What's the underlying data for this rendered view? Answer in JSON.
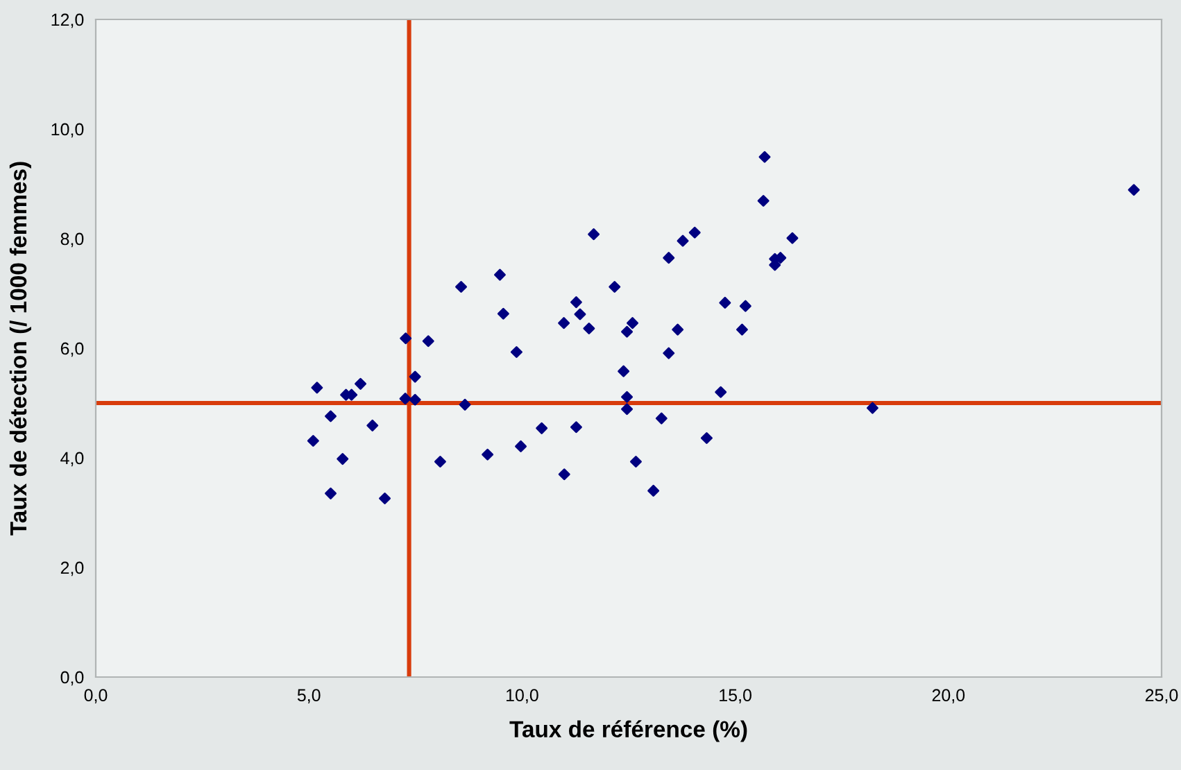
{
  "chart_data": {
    "type": "scatter",
    "xlabel": "Taux de référence (%)",
    "ylabel": "Taux de détection (/ 1000 femmes)",
    "xlim": [
      0,
      25
    ],
    "ylim": [
      0,
      12
    ],
    "xticks": [
      {
        "value": 0,
        "label": "0,0"
      },
      {
        "value": 5,
        "label": "5,0"
      },
      {
        "value": 10,
        "label": "10,0"
      },
      {
        "value": 15,
        "label": "15,0"
      },
      {
        "value": 20,
        "label": "20,0"
      },
      {
        "value": 25,
        "label": "25,0"
      }
    ],
    "yticks": [
      {
        "value": 0,
        "label": "0,0"
      },
      {
        "value": 2,
        "label": "2,0"
      },
      {
        "value": 4,
        "label": "4,0"
      },
      {
        "value": 6,
        "label": "6,0"
      },
      {
        "value": 8,
        "label": "8,0"
      },
      {
        "value": 10,
        "label": "10,0"
      },
      {
        "value": 12,
        "label": "12,0"
      }
    ],
    "grid": false,
    "legend": false,
    "marker": "diamond",
    "series": [
      {
        "color": "#000080",
        "x": [
          5.19,
          5.51,
          5.1,
          5.79,
          5.51,
          5.87,
          6.0,
          6.21,
          6.49,
          6.78,
          7.27,
          7.26,
          7.49,
          7.49,
          7.8,
          8.08,
          8.57,
          8.66,
          9.48,
          9.56,
          9.87,
          9.19,
          9.97,
          10.46,
          10.99,
          11.27,
          10.98,
          11.27,
          11.36,
          11.57,
          11.68,
          12.17,
          13.44,
          13.77,
          14.05,
          12.59,
          12.46,
          13.65,
          13.44,
          12.38,
          12.46,
          12.46,
          13.27,
          14.66,
          14.33,
          12.67,
          13.08,
          14.76,
          15.24,
          15.16,
          15.66,
          15.69,
          16.34,
          15.93,
          16.06,
          15.93,
          18.22,
          24.35
        ],
        "values": [
          5.28,
          4.76,
          4.31,
          3.98,
          3.35,
          5.15,
          5.15,
          5.35,
          4.59,
          3.26,
          6.18,
          5.08,
          5.48,
          5.06,
          6.13,
          3.93,
          7.12,
          4.97,
          7.34,
          6.63,
          5.93,
          4.06,
          4.21,
          4.54,
          3.7,
          4.56,
          6.46,
          6.84,
          6.62,
          6.36,
          8.08,
          7.12,
          7.65,
          7.96,
          8.11,
          6.46,
          6.3,
          6.34,
          5.91,
          5.58,
          5.11,
          4.89,
          4.72,
          5.2,
          4.36,
          3.93,
          3.4,
          6.83,
          6.77,
          6.34,
          8.69,
          9.49,
          8.01,
          7.63,
          7.65,
          7.52,
          4.91,
          8.89
        ]
      }
    ],
    "ref_lines": [
      {
        "axis": "x",
        "value": 7.35,
        "color": "#d83c0c"
      },
      {
        "axis": "y",
        "value": 5.0,
        "color": "#d83c0c"
      }
    ]
  }
}
